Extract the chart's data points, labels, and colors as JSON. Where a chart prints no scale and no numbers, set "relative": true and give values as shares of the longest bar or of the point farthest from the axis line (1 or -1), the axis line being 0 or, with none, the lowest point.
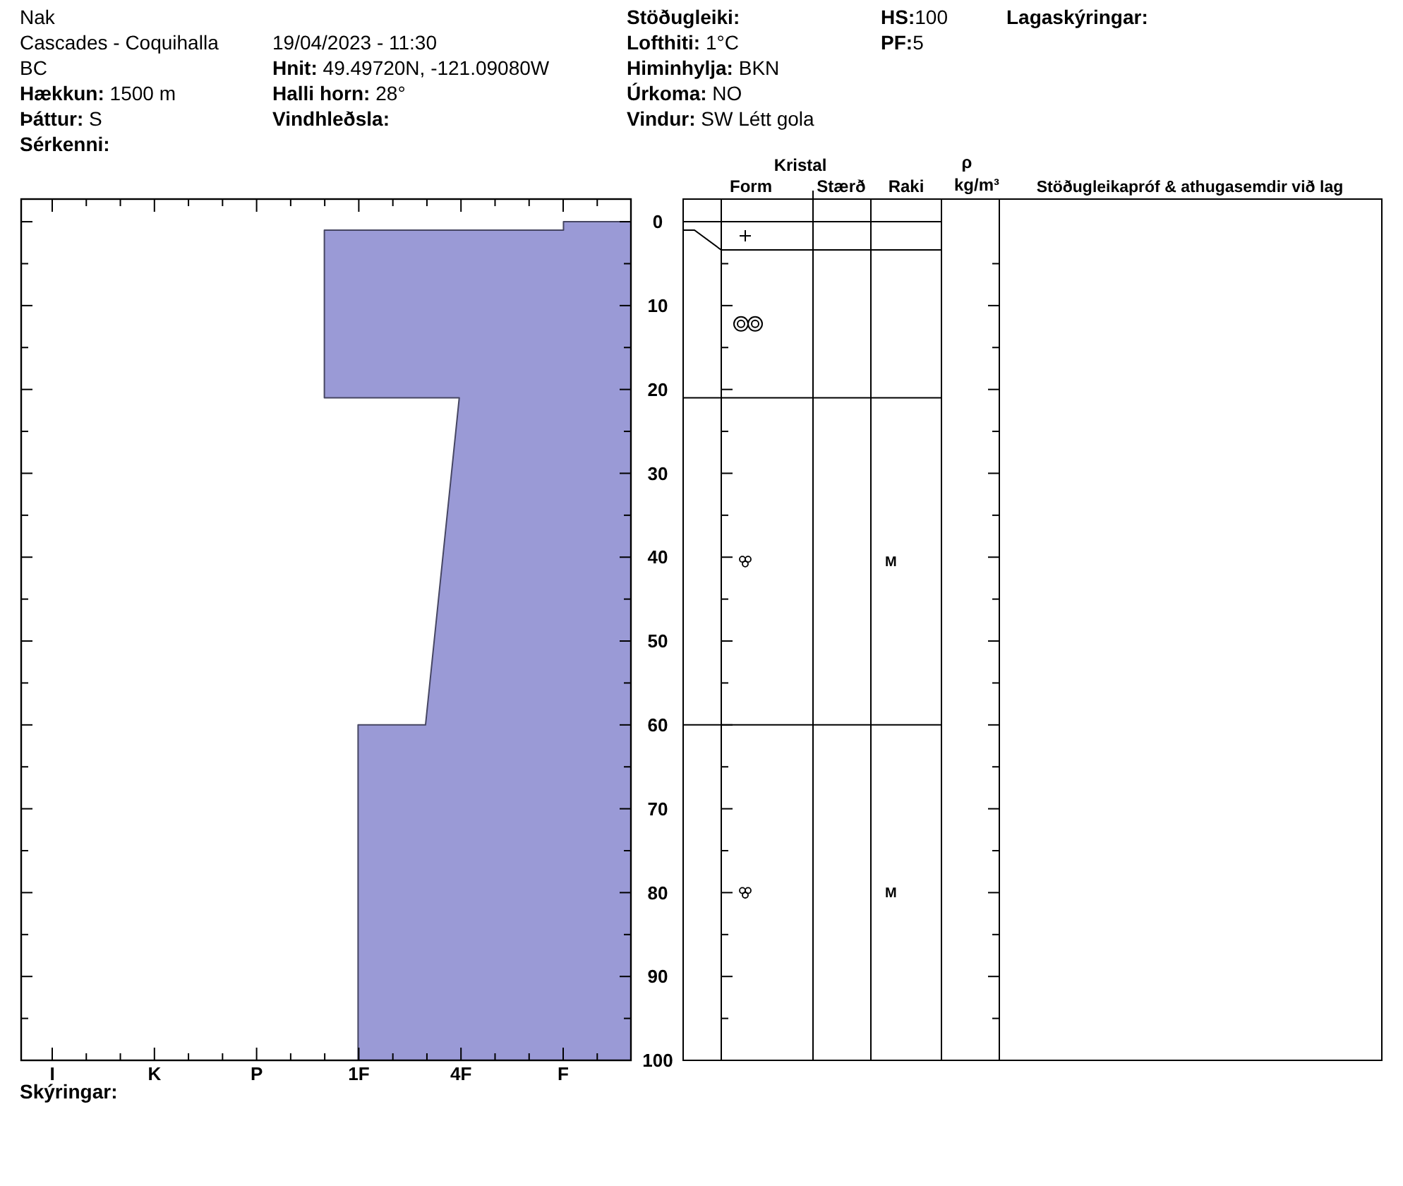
{
  "chart_data": {
    "type": "area",
    "orientation": "horizontal",
    "relative": true,
    "x": [
      0,
      1,
      1,
      21,
      21,
      60,
      60,
      100
    ],
    "series": [
      {
        "color": "#9a9ad6",
        "values": [
          -0.22,
          -0.22,
          -1,
          -1,
          -0.56,
          -0.67,
          -0.89,
          -0.89
        ]
      }
    ],
    "ylim": [
      100,
      -2.7
    ],
    "yticks": [
      0,
      {
        "value": 5,
        "label": null
      },
      10,
      {
        "value": 15,
        "label": null
      },
      20,
      {
        "value": 25,
        "label": null
      },
      30,
      {
        "value": 35,
        "label": null
      },
      40,
      {
        "value": 45,
        "label": null
      },
      50,
      {
        "value": 55,
        "label": null
      },
      60,
      {
        "value": 65,
        "label": null
      },
      70,
      {
        "value": 75,
        "label": null
      },
      80,
      {
        "value": 85,
        "label": null
      },
      90,
      {
        "value": 95,
        "label": null
      },
      100
    ],
    "annotations": [
      "Nak",
      "Cascades - Coquihalla",
      "BC",
      "Hækkun: 1500 m",
      "Þáttur: S",
      "Sérkenni:",
      "19/04/2023 - 11:30",
      "Hnit: 49.49720N, -121.09080W",
      "Halli horn: 28°",
      "Vindhleðsla:",
      "Stöðugleiki:",
      "Lofthiti: 1°C",
      "Himinhylja: BKN",
      "Úrkoma: NO",
      "Vindur: SW Létt gola",
      "HS:100",
      "PF:5",
      "Lagaskýringar:",
      "Skýringar:",
      "Kristal",
      "Form",
      "Stærð",
      "Raki",
      "ρ",
      "kg/m³",
      "Stöðugleikapróf & athugasemdir við lag",
      "M",
      "M",
      "I",
      "K",
      "P",
      "1F",
      "4F",
      "F"
    ]
  }
}
